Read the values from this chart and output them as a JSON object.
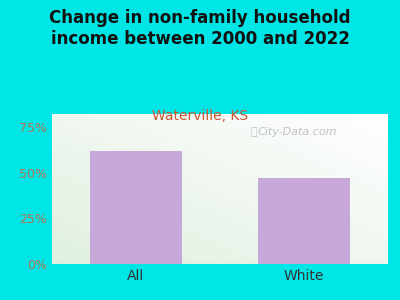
{
  "title": "Change in non-family household\nincome between 2000 and 2022",
  "subtitle": "Waterville, KS",
  "categories": [
    "All",
    "White"
  ],
  "values": [
    62,
    47
  ],
  "bar_color": "#c8a8d8",
  "title_fontsize": 12,
  "subtitle_fontsize": 10,
  "subtitle_color": "#cc5533",
  "title_color": "#111111",
  "xlabel_color": "#333333",
  "ytick_color": "#aa7755",
  "ytick_labels": [
    "0%",
    "25%",
    "50%",
    "75%"
  ],
  "ytick_values": [
    0,
    25,
    50,
    75
  ],
  "ylim": [
    0,
    82
  ],
  "bg_outer": "#00e5e5",
  "bg_plot": "#f2f5e8",
  "watermark": "City-Data.com",
  "bar_width": 0.55
}
